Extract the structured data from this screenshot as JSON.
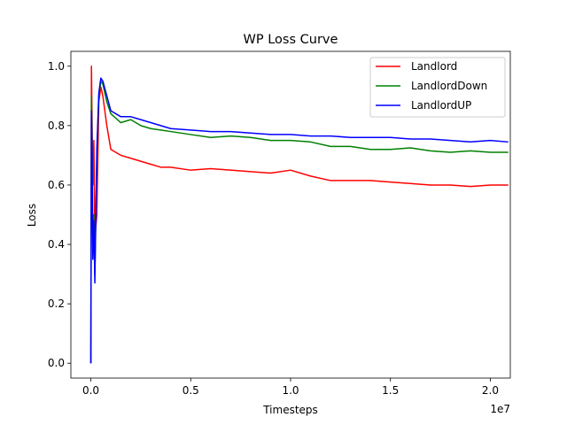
{
  "chart_data": {
    "type": "line",
    "title": "WP Loss Curve",
    "xlabel": "Timesteps",
    "ylabel": "Loss",
    "x_offset_label": "1e7",
    "xlim": [
      -0.1,
      2.1
    ],
    "ylim": [
      -0.05,
      1.05
    ],
    "x_ticks": [
      0.0,
      0.5,
      1.0,
      1.5,
      2.0
    ],
    "x_tick_labels": [
      "0.0",
      "0.5",
      "1.0",
      "1.5",
      "2.0"
    ],
    "y_ticks": [
      0.0,
      0.2,
      0.4,
      0.6,
      0.8,
      1.0
    ],
    "y_tick_labels": [
      "0.0",
      "0.2",
      "0.4",
      "0.6",
      "0.8",
      "1.0"
    ],
    "grid": false,
    "legend_position": "top-right",
    "series": [
      {
        "name": "Landlord",
        "color": "#ff0000",
        "x": [
          0.0,
          0.003,
          0.006,
          0.01,
          0.015,
          0.02,
          0.03,
          0.04,
          0.05,
          0.06,
          0.08,
          0.1,
          0.15,
          0.2,
          0.25,
          0.3,
          0.35,
          0.4,
          0.5,
          0.6,
          0.7,
          0.8,
          0.9,
          1.0,
          1.1,
          1.2,
          1.3,
          1.4,
          1.5,
          1.6,
          1.7,
          1.8,
          1.9,
          2.0,
          2.09
        ],
        "y": [
          0.0,
          1.0,
          0.82,
          0.6,
          0.75,
          0.42,
          0.5,
          0.88,
          0.93,
          0.9,
          0.8,
          0.72,
          0.7,
          0.69,
          0.68,
          0.67,
          0.66,
          0.66,
          0.65,
          0.655,
          0.65,
          0.645,
          0.64,
          0.65,
          0.63,
          0.615,
          0.615,
          0.615,
          0.61,
          0.605,
          0.6,
          0.6,
          0.595,
          0.6,
          0.6
        ]
      },
      {
        "name": "LandlordDown",
        "color": "#008000",
        "x": [
          0.0,
          0.003,
          0.006,
          0.01,
          0.015,
          0.02,
          0.03,
          0.04,
          0.05,
          0.06,
          0.08,
          0.1,
          0.15,
          0.2,
          0.25,
          0.3,
          0.35,
          0.4,
          0.5,
          0.6,
          0.7,
          0.8,
          0.9,
          1.0,
          1.1,
          1.2,
          1.3,
          1.4,
          1.5,
          1.6,
          1.7,
          1.8,
          1.9,
          2.0,
          2.09
        ],
        "y": [
          0.0,
          0.9,
          0.75,
          0.4,
          0.5,
          0.3,
          0.7,
          0.9,
          0.95,
          0.94,
          0.88,
          0.84,
          0.81,
          0.82,
          0.8,
          0.79,
          0.785,
          0.78,
          0.77,
          0.76,
          0.765,
          0.76,
          0.75,
          0.75,
          0.745,
          0.73,
          0.73,
          0.72,
          0.72,
          0.725,
          0.715,
          0.71,
          0.715,
          0.71,
          0.71
        ]
      },
      {
        "name": "LandlordUP",
        "color": "#0000ff",
        "x": [
          0.0,
          0.003,
          0.006,
          0.01,
          0.015,
          0.02,
          0.03,
          0.04,
          0.05,
          0.06,
          0.08,
          0.1,
          0.15,
          0.2,
          0.25,
          0.3,
          0.35,
          0.4,
          0.5,
          0.6,
          0.7,
          0.8,
          0.9,
          1.0,
          1.1,
          1.2,
          1.3,
          1.4,
          1.5,
          1.6,
          1.7,
          1.8,
          1.9,
          2.0,
          2.09
        ],
        "y": [
          0.0,
          0.85,
          0.7,
          0.35,
          0.48,
          0.27,
          0.72,
          0.91,
          0.96,
          0.95,
          0.9,
          0.85,
          0.83,
          0.83,
          0.82,
          0.81,
          0.8,
          0.79,
          0.785,
          0.78,
          0.78,
          0.775,
          0.77,
          0.77,
          0.765,
          0.765,
          0.76,
          0.76,
          0.76,
          0.755,
          0.755,
          0.75,
          0.745,
          0.75,
          0.745
        ]
      }
    ]
  }
}
